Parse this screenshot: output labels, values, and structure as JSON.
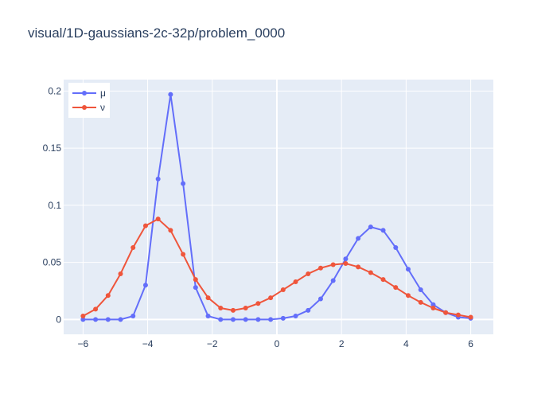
{
  "chart_data": {
    "type": "line",
    "title": "visual/1D-gaussians-2c-32p/problem_0000",
    "xlabel": "",
    "ylabel": "",
    "xlim": [
      -6.6,
      6.7
    ],
    "ylim": [
      -0.013,
      0.21
    ],
    "x_ticks": [
      -6,
      -4,
      -2,
      0,
      2,
      4,
      6
    ],
    "x_tick_labels": [
      "−6",
      "−4",
      "−2",
      "0",
      "2",
      "4",
      "6"
    ],
    "y_ticks": [
      0,
      0.05,
      0.1,
      0.15,
      0.2
    ],
    "y_tick_labels": [
      "0",
      "0.05",
      "0.1",
      "0.15",
      "0.2"
    ],
    "grid": true,
    "legend_position": "top-left",
    "x": [
      -6.0,
      -5.6129,
      -5.2258,
      -4.8387,
      -4.4516,
      -4.0645,
      -3.6774,
      -3.2903,
      -2.9032,
      -2.5161,
      -2.129,
      -1.7419,
      -1.3548,
      -0.9677,
      -0.5806,
      -0.1935,
      0.1935,
      0.5806,
      0.9677,
      1.3548,
      1.7419,
      2.129,
      2.5161,
      2.9032,
      3.2903,
      3.6774,
      4.0645,
      4.4516,
      4.8387,
      5.2258,
      5.6129,
      6.0
    ],
    "series": [
      {
        "name": "μ",
        "color": "#636efa",
        "values": [
          0.0,
          0.0,
          0.0,
          0.0,
          0.003,
          0.03,
          0.123,
          0.197,
          0.119,
          0.028,
          0.003,
          0.0,
          0.0,
          0.0,
          0.0,
          0.0,
          0.001,
          0.003,
          0.008,
          0.018,
          0.034,
          0.053,
          0.071,
          0.081,
          0.078,
          0.063,
          0.044,
          0.026,
          0.013,
          0.006,
          0.002,
          0.001
        ]
      },
      {
        "name": "ν",
        "color": "#ef553b",
        "values": [
          0.003,
          0.009,
          0.021,
          0.04,
          0.063,
          0.082,
          0.088,
          0.078,
          0.057,
          0.035,
          0.019,
          0.01,
          0.008,
          0.01,
          0.014,
          0.019,
          0.026,
          0.033,
          0.04,
          0.045,
          0.048,
          0.049,
          0.046,
          0.041,
          0.035,
          0.028,
          0.021,
          0.015,
          0.01,
          0.006,
          0.004,
          0.002
        ]
      }
    ]
  }
}
